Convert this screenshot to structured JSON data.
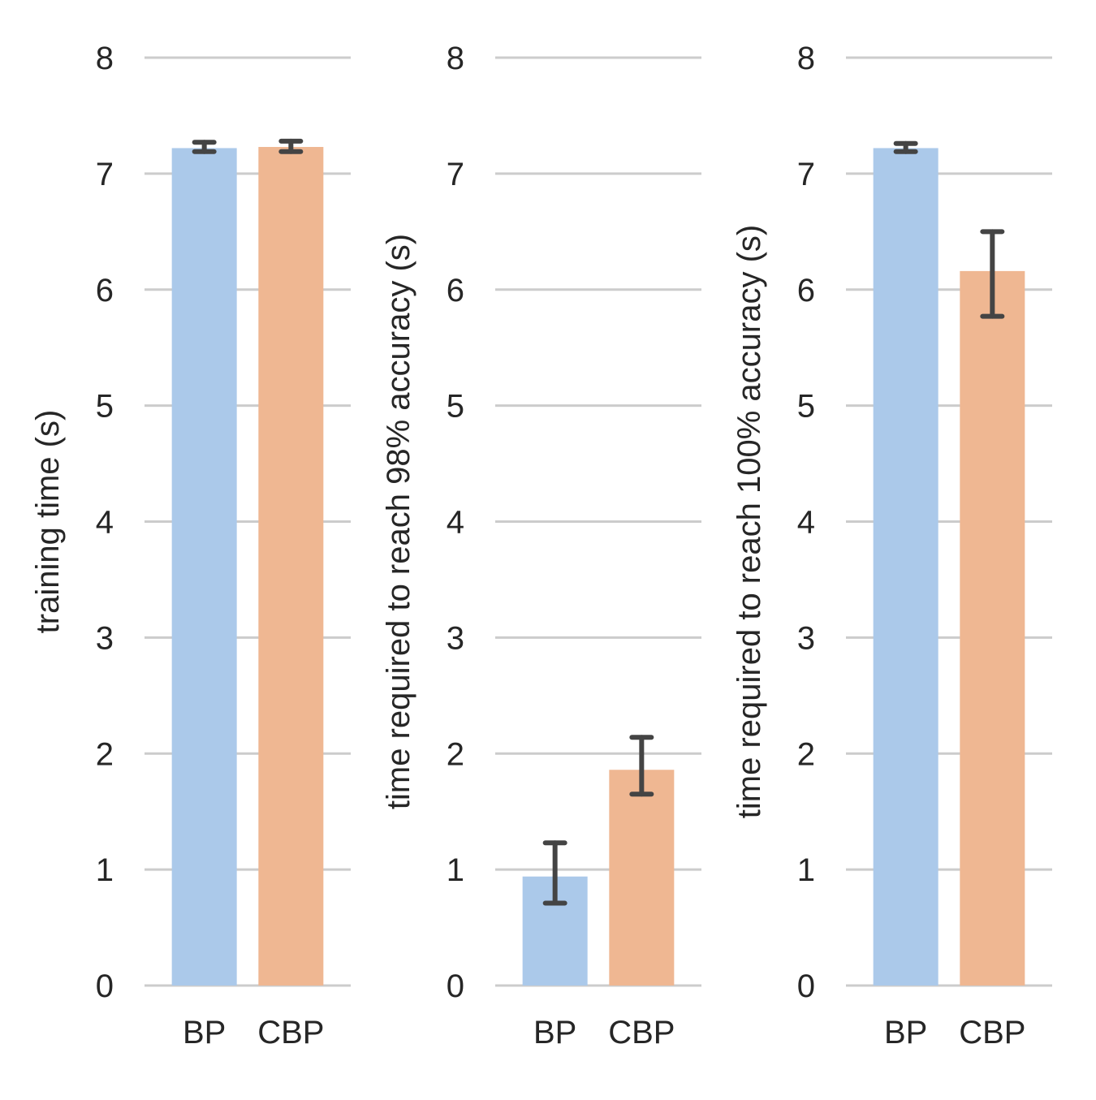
{
  "chart_data": [
    {
      "type": "bar",
      "categories": [
        "BP",
        "CBP"
      ],
      "values": [
        7.22,
        7.23
      ],
      "error_low": [
        7.19,
        7.19
      ],
      "error_high": [
        7.27,
        7.28
      ],
      "ylabel": "training time (s)",
      "xlabel": "",
      "ylim": [
        0,
        8
      ],
      "yticks": [
        "0",
        "1",
        "2",
        "3",
        "4",
        "5",
        "6",
        "7",
        "8"
      ],
      "grid": true
    },
    {
      "type": "bar",
      "categories": [
        "BP",
        "CBP"
      ],
      "values": [
        0.94,
        1.86
      ],
      "error_low": [
        0.71,
        1.65
      ],
      "error_high": [
        1.23,
        2.14
      ],
      "ylabel": "time required to reach 98% accuracy (s)",
      "xlabel": "",
      "ylim": [
        0,
        8
      ],
      "yticks": [
        "0",
        "1",
        "2",
        "3",
        "4",
        "5",
        "6",
        "7",
        "8"
      ],
      "grid": true
    },
    {
      "type": "bar",
      "categories": [
        "BP",
        "CBP"
      ],
      "values": [
        7.22,
        6.16
      ],
      "error_low": [
        7.19,
        5.77
      ],
      "error_high": [
        7.26,
        6.5
      ],
      "ylabel": "time required to reach 100% accuracy (s)",
      "xlabel": "",
      "ylim": [
        0,
        8
      ],
      "yticks": [
        "0",
        "1",
        "2",
        "3",
        "4",
        "5",
        "6",
        "7",
        "8"
      ],
      "grid": true
    }
  ],
  "colors": {
    "bar_colors": [
      "#abc9ea",
      "#efb792"
    ],
    "grid": "#cccccc",
    "errorbar": "#444444",
    "text": "#262626"
  }
}
